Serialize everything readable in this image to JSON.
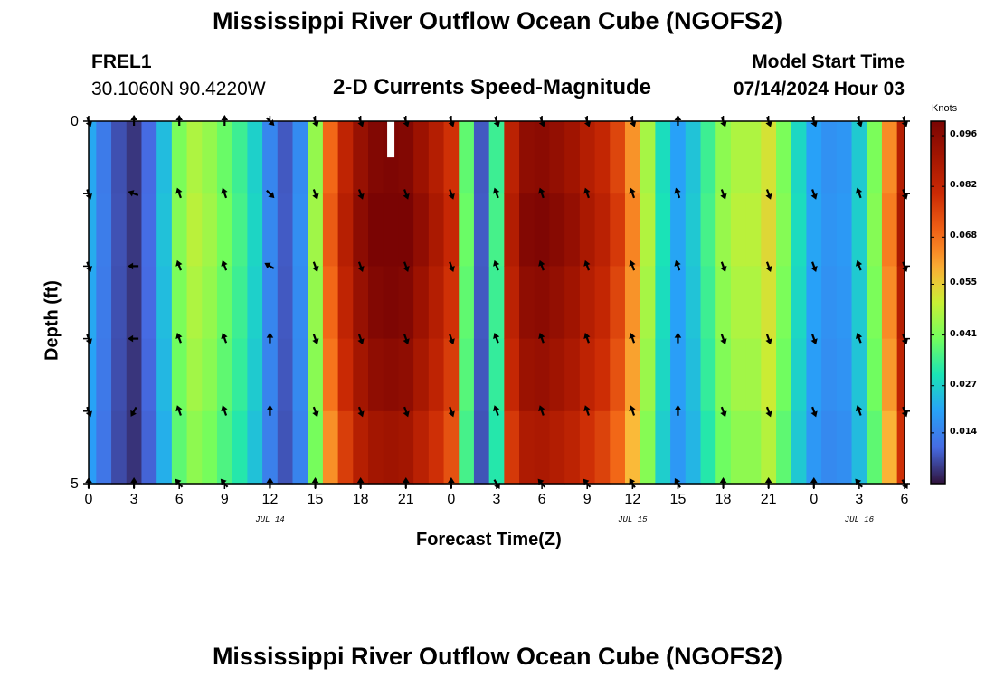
{
  "header": {
    "title": "Mississippi River Outflow Ocean Cube (NGOFS2)",
    "station_id": "FREL1",
    "station_coords": "30.1060N  90.4220W",
    "subtitle": "2-D Currents Speed-Magnitude",
    "model_label": "Model Start Time",
    "model_time": "07/14/2024 Hour 03"
  },
  "footer": {
    "title": "Mississippi River Outflow Ocean Cube (NGOFS2)"
  },
  "chart_data": {
    "type": "heatmap",
    "title": "2-D Currents Speed-Magnitude",
    "xlabel": "Forecast Time(Z)",
    "ylabel": "Depth (ft)",
    "colorbar_label": "Knots",
    "x_hours": [
      0,
      1,
      2,
      3,
      4,
      5,
      6,
      7,
      8,
      9,
      10,
      11,
      12,
      13,
      14,
      15,
      16,
      17,
      18,
      19,
      20,
      21,
      22,
      23,
      24,
      25,
      26,
      27,
      28,
      29,
      30,
      31,
      32,
      33,
      34,
      35,
      36,
      37,
      38,
      39,
      40,
      41,
      42,
      43,
      44,
      45,
      46,
      47,
      48,
      49,
      50,
      51,
      52,
      53,
      54
    ],
    "x_tick_labels": [
      "0",
      "3",
      "6",
      "9",
      "12",
      "15",
      "18",
      "21",
      "0",
      "3",
      "6",
      "9",
      "12",
      "15",
      "18",
      "21",
      "0",
      "3",
      "6"
    ],
    "x_tick_hours": [
      0,
      3,
      6,
      9,
      12,
      15,
      18,
      21,
      24,
      27,
      30,
      33,
      36,
      39,
      42,
      45,
      48,
      51,
      54
    ],
    "date_labels": [
      {
        "text": "JUL 14",
        "hour": 12
      },
      {
        "text": "JUL 15",
        "hour": 36
      },
      {
        "text": "JUL 16",
        "hour": 51
      }
    ],
    "y_range": [
      0,
      5
    ],
    "y_tick_labels": [
      "0",
      "5"
    ],
    "depth_levels": 5,
    "colorbar_ticks": [
      "0.096",
      "0.082",
      "0.068",
      "0.055",
      "0.041",
      "0.027",
      "0.014"
    ],
    "colorbar_tick_values": [
      0.096,
      0.082,
      0.068,
      0.055,
      0.041,
      0.027,
      0.014
    ],
    "color_range": [
      0.0,
      0.1
    ],
    "speed_profile_knots": [
      0.021,
      0.013,
      0.007,
      0.004,
      0.01,
      0.024,
      0.041,
      0.047,
      0.044,
      0.039,
      0.034,
      0.027,
      0.015,
      0.008,
      0.016,
      0.044,
      0.069,
      0.083,
      0.093,
      0.098,
      0.099,
      0.098,
      0.092,
      0.086,
      0.079,
      0.038,
      0.008,
      0.034,
      0.084,
      0.095,
      0.096,
      0.094,
      0.091,
      0.086,
      0.082,
      0.075,
      0.063,
      0.046,
      0.029,
      0.02,
      0.025,
      0.034,
      0.043,
      0.047,
      0.047,
      0.052,
      0.041,
      0.028,
      0.02,
      0.017,
      0.018,
      0.026,
      0.041,
      0.064,
      0.086
    ],
    "depth_factors": [
      1.0,
      1.03,
      1.0,
      0.97,
      0.92
    ],
    "arrow_hours": [
      0,
      3,
      6,
      9,
      12,
      15,
      18,
      21,
      24,
      27,
      30,
      33,
      36,
      39,
      42,
      45,
      48,
      51,
      54
    ],
    "arrow_angle_deg": [
      [
        160,
        0,
        0,
        0,
        135,
        160,
        160,
        160,
        160,
        160,
        160,
        160,
        160,
        0,
        160,
        160,
        160,
        160,
        160
      ],
      [
        160,
        290,
        340,
        340,
        135,
        160,
        160,
        160,
        160,
        340,
        340,
        340,
        340,
        340,
        160,
        160,
        160,
        340,
        160
      ],
      [
        160,
        270,
        340,
        340,
        300,
        160,
        160,
        160,
        160,
        340,
        340,
        340,
        340,
        340,
        160,
        160,
        160,
        340,
        160
      ],
      [
        160,
        270,
        340,
        340,
        0,
        160,
        160,
        160,
        160,
        340,
        340,
        340,
        340,
        0,
        160,
        160,
        160,
        340,
        160
      ],
      [
        160,
        210,
        340,
        340,
        0,
        160,
        160,
        160,
        160,
        340,
        340,
        340,
        340,
        0,
        160,
        160,
        160,
        340,
        160
      ],
      [
        0,
        0,
        320,
        320,
        0,
        0,
        0,
        0,
        0,
        150,
        320,
        320,
        330,
        330,
        0,
        0,
        0,
        320,
        150
      ]
    ],
    "arrow_depth_rows": 6,
    "missing_value": {
      "hour": 20,
      "depth_from": 0,
      "depth_to": 0.5
    }
  }
}
